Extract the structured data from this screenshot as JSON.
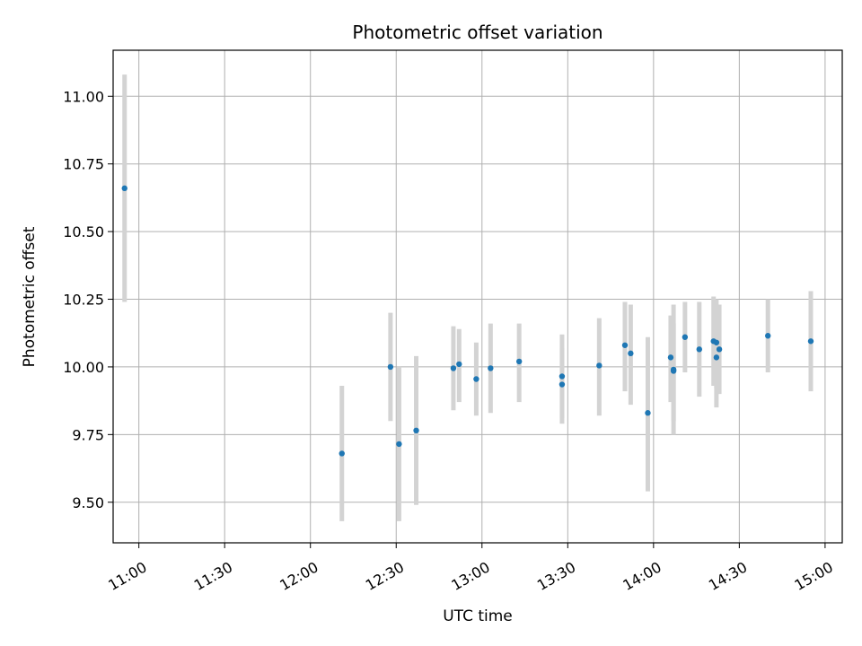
{
  "chart_data": {
    "type": "scatter",
    "title": "Photometric offset variation",
    "xlabel": "UTC time",
    "ylabel": "Photometric offset",
    "xlim": [
      "10:51",
      "15:06"
    ],
    "ylim": [
      9.35,
      11.17
    ],
    "grid": true,
    "x_ticks": [
      "11:00",
      "11:30",
      "12:00",
      "12:30",
      "13:00",
      "13:30",
      "14:00",
      "14:30",
      "15:00"
    ],
    "y_ticks": [
      "9.50",
      "9.75",
      "10.00",
      "10.25",
      "10.50",
      "10.75",
      "11.00"
    ],
    "colors": {
      "point": "#1f77b4",
      "errorbar": "#d3d3d3",
      "grid": "#b0b0b0"
    },
    "points": [
      {
        "x": "10:55",
        "y": 10.66,
        "err_low": 10.24,
        "err_high": 11.08
      },
      {
        "x": "12:11",
        "y": 9.68,
        "err_low": 9.43,
        "err_high": 9.93
      },
      {
        "x": "12:28",
        "y": 10.0,
        "err_low": 9.8,
        "err_high": 10.2
      },
      {
        "x": "12:31",
        "y": 9.715,
        "err_low": 9.43,
        "err_high": 10.0
      },
      {
        "x": "12:37",
        "y": 9.765,
        "err_low": 9.49,
        "err_high": 10.04
      },
      {
        "x": "12:50",
        "y": 9.995,
        "err_low": 9.84,
        "err_high": 10.15
      },
      {
        "x": "12:52",
        "y": 10.01,
        "err_low": 9.87,
        "err_high": 10.14
      },
      {
        "x": "12:58",
        "y": 9.955,
        "err_low": 9.82,
        "err_high": 10.09
      },
      {
        "x": "13:03",
        "y": 9.995,
        "err_low": 9.83,
        "err_high": 10.16
      },
      {
        "x": "13:13",
        "y": 10.02,
        "err_low": 9.87,
        "err_high": 10.16
      },
      {
        "x": "13:28",
        "y": 9.935,
        "err_low": 9.79,
        "err_high": 10.07
      },
      {
        "x": "13:28",
        "y": 9.965,
        "err_low": 9.81,
        "err_high": 10.12
      },
      {
        "x": "13:41",
        "y": 10.005,
        "err_low": 9.82,
        "err_high": 10.18
      },
      {
        "x": "13:50",
        "y": 10.08,
        "err_low": 9.91,
        "err_high": 10.24
      },
      {
        "x": "13:52",
        "y": 10.05,
        "err_low": 9.86,
        "err_high": 10.23
      },
      {
        "x": "13:58",
        "y": 9.83,
        "err_low": 9.54,
        "err_high": 10.11
      },
      {
        "x": "14:06",
        "y": 10.035,
        "err_low": 9.87,
        "err_high": 10.19
      },
      {
        "x": "14:07",
        "y": 9.99,
        "err_low": 9.75,
        "err_high": 10.23
      },
      {
        "x": "14:07",
        "y": 9.985,
        "err_low": 9.8,
        "err_high": 10.16
      },
      {
        "x": "14:11",
        "y": 10.11,
        "err_low": 9.98,
        "err_high": 10.24
      },
      {
        "x": "14:16",
        "y": 10.065,
        "err_low": 9.89,
        "err_high": 10.24
      },
      {
        "x": "14:21",
        "y": 10.095,
        "err_low": 9.93,
        "err_high": 10.26
      },
      {
        "x": "14:22",
        "y": 10.09,
        "err_low": 9.92,
        "err_high": 10.25
      },
      {
        "x": "14:22",
        "y": 10.035,
        "err_low": 9.85,
        "err_high": 10.22
      },
      {
        "x": "14:23",
        "y": 10.065,
        "err_low": 9.9,
        "err_high": 10.23
      },
      {
        "x": "14:40",
        "y": 10.115,
        "err_low": 9.98,
        "err_high": 10.25
      },
      {
        "x": "14:55",
        "y": 10.095,
        "err_low": 9.91,
        "err_high": 10.28
      }
    ]
  }
}
